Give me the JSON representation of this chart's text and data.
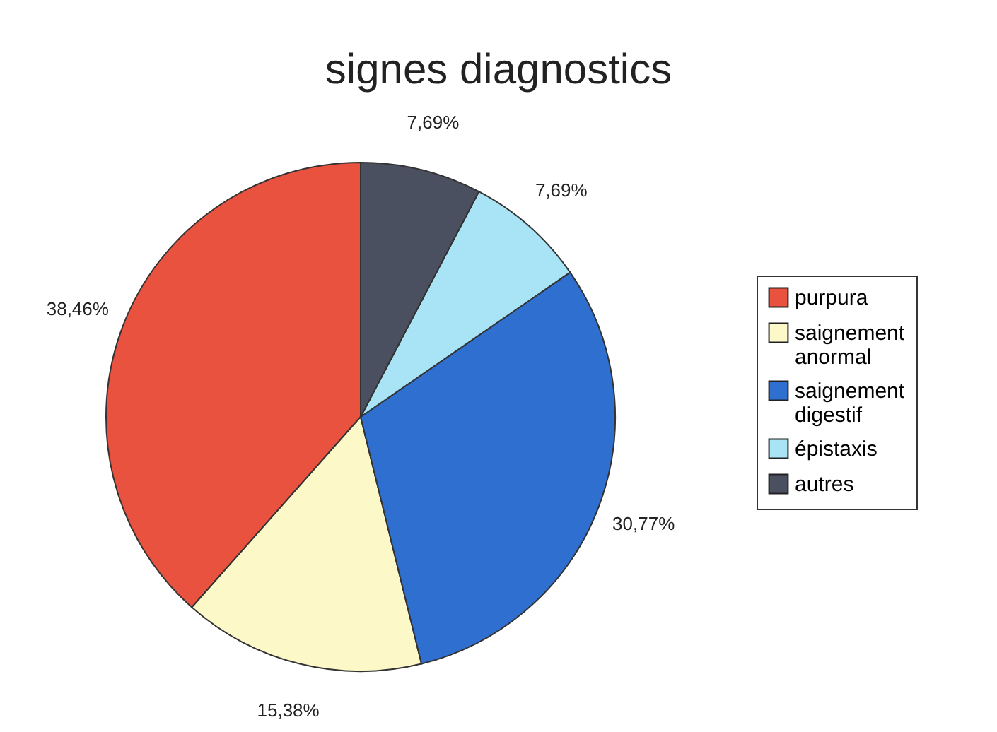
{
  "chart_data": {
    "type": "pie",
    "title": "signes diagnostics",
    "categories": [
      "purpura",
      "saignement anormal",
      "saignement digestif",
      "épistaxis",
      "autres"
    ],
    "values": [
      38.46,
      15.38,
      30.77,
      7.69,
      7.69
    ],
    "value_labels": [
      "38,46%",
      "15,38%",
      "30,77%",
      "7,69%",
      "7,69%"
    ],
    "colors": [
      "#e8523f",
      "#fdf8c8",
      "#2f6fd0",
      "#a8e4f5",
      "#4a5060"
    ],
    "legend": "right"
  }
}
